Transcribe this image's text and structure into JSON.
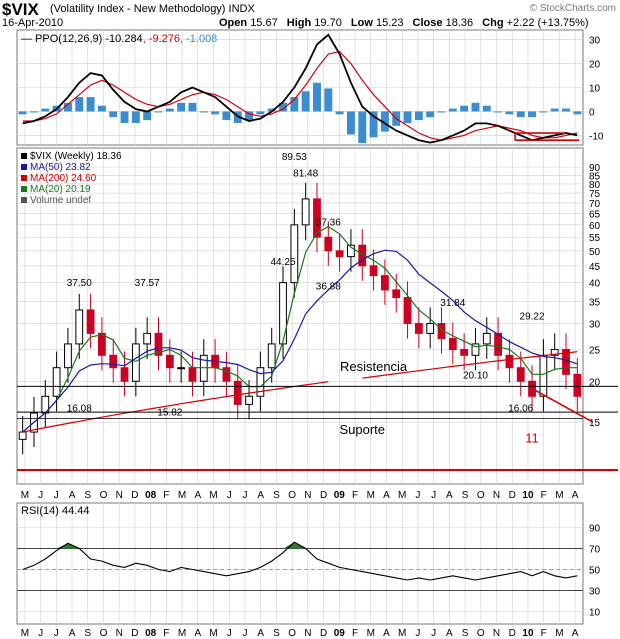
{
  "header": {
    "symbol": "$VIX",
    "name": "(Volatility Index - New Methodology) INDX",
    "date": "16-Apr-2010",
    "open_label": "Open",
    "open": "15.67",
    "high_label": "High",
    "high": "19.70",
    "low_label": "Low",
    "low": "15.23",
    "close_label": "Close",
    "close": "18.36",
    "chg_label": "Chg",
    "chg": "+2.22 (+13.75%)",
    "brand": "© StockCharts.com"
  },
  "colors": {
    "price_up": "#000000",
    "price_down": "#cc0022",
    "ma50": "#1a1aa0",
    "ma200": "#d40000",
    "ma20": "#1a7a1a",
    "histogram": "#3c8cd0",
    "grid": "#cfcfcf",
    "annotation_red": "#d40000",
    "rsi_fill": "#2a7a2a"
  },
  "chart_data": [
    {
      "panel": "ppo",
      "type": "line",
      "legend": [
        {
          "text": "PPO(12,26,9) -10.284",
          "color": "#000000"
        },
        {
          "text": "-9.276",
          "color": "#d40000"
        },
        {
          "text": "-1.008",
          "color": "#3c8cd0"
        }
      ],
      "y_ticks": [
        30,
        20,
        10,
        0,
        -10
      ],
      "ylim": [
        -14,
        34
      ],
      "series": [
        {
          "name": "PPO",
          "values": [
            -5,
            -4,
            -2,
            1,
            6,
            12,
            16,
            15,
            9,
            4,
            1,
            0,
            2,
            4,
            8,
            10,
            8,
            6,
            2,
            -2,
            -4,
            -3,
            0,
            4,
            10,
            18,
            28,
            32,
            24,
            12,
            2,
            -2,
            -5,
            -8,
            -10,
            -12,
            -13,
            -12,
            -10,
            -8,
            -5,
            -5,
            -6,
            -8,
            -10,
            -12,
            -11,
            -10,
            -9,
            -10
          ]
        },
        {
          "name": "Signal",
          "values": [
            -4,
            -4,
            -3,
            -1,
            3,
            7,
            11,
            13,
            11,
            8,
            5,
            3,
            2,
            3,
            5,
            7,
            8,
            7,
            5,
            2,
            -1,
            -2,
            -1,
            1,
            5,
            11,
            18,
            24,
            25,
            20,
            13,
            7,
            2,
            -3,
            -6,
            -9,
            -11,
            -12,
            -11,
            -10,
            -8,
            -7,
            -6,
            -7,
            -8,
            -10,
            -11,
            -11,
            -10,
            -9
          ]
        }
      ],
      "zero_box": {
        "label": "drawn box",
        "from": -12,
        "to": -9
      }
    },
    {
      "panel": "price",
      "type": "candlestick",
      "legend": [
        {
          "text": "$VIX (Weekly) 18.36",
          "color": "#000000"
        },
        {
          "text": "MA(50) 23.82",
          "color": "#1a1aa0"
        },
        {
          "text": "MA(200) 24.60",
          "color": "#d40000"
        },
        {
          "text": "MA(20) 20.19",
          "color": "#1a7a1a"
        },
        {
          "text": "Volume undef",
          "color": "#555555"
        }
      ],
      "y_ticks": [
        90,
        85,
        80,
        75,
        70,
        65,
        60,
        55,
        50,
        45,
        40,
        35,
        30,
        25,
        20,
        15
      ],
      "ylim": [
        12,
        92
      ],
      "scale": "log",
      "x_labels": [
        "M",
        "J",
        "J",
        "A",
        "S",
        "O",
        "N",
        "D",
        "08",
        "F",
        "M",
        "A",
        "M",
        "J",
        "J",
        "A",
        "S",
        "O",
        "N",
        "D",
        "09",
        "F",
        "M",
        "A",
        "M",
        "J",
        "J",
        "A",
        "S",
        "O",
        "N",
        "D",
        "10",
        "F",
        "M",
        "A"
      ],
      "close_values": [
        14,
        16,
        18,
        22,
        26,
        33,
        28,
        24,
        22,
        20,
        26,
        28,
        24,
        22,
        22,
        20,
        24,
        22,
        20,
        17,
        18,
        22,
        26,
        40,
        60,
        72,
        55,
        50,
        48,
        52,
        45,
        42,
        38,
        36,
        30,
        28,
        30,
        27,
        25,
        24,
        26,
        28,
        24,
        22,
        20,
        18,
        24,
        25,
        21,
        18
      ],
      "price_labels": [
        {
          "text": "37.50"
        },
        {
          "text": "37.57"
        },
        {
          "text": "89.53"
        },
        {
          "text": "81.48"
        },
        {
          "text": "57.36"
        },
        {
          "text": "44.25"
        },
        {
          "text": "36.88"
        },
        {
          "text": "31.84"
        },
        {
          "text": "29.22"
        },
        {
          "text": "16.08"
        },
        {
          "text": "15.82"
        },
        {
          "text": "20.10"
        },
        {
          "text": "16.06"
        }
      ],
      "annotations": [
        {
          "text": "Resistencia"
        },
        {
          "text": "Suporte"
        },
        {
          "text": "11"
        }
      ]
    },
    {
      "panel": "rsi",
      "type": "line",
      "legend": [
        {
          "text": "RSI(14) 44.44",
          "color": "#000000"
        }
      ],
      "y_ticks": [
        90,
        70,
        50,
        30,
        10
      ],
      "ylim": [
        0,
        100
      ],
      "values": [
        50,
        54,
        60,
        68,
        75,
        70,
        60,
        58,
        54,
        52,
        56,
        54,
        50,
        48,
        52,
        50,
        48,
        46,
        44,
        46,
        48,
        52,
        58,
        66,
        76,
        70,
        60,
        56,
        52,
        50,
        48,
        46,
        44,
        42,
        40,
        42,
        40,
        42,
        44,
        42,
        40,
        42,
        44,
        46,
        48,
        44,
        48,
        44,
        42,
        44
      ]
    }
  ]
}
